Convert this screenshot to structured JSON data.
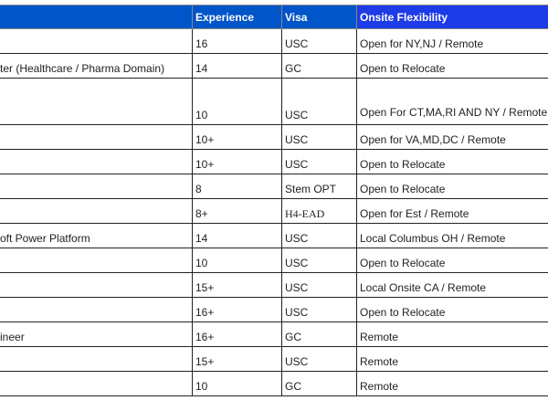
{
  "headers": {
    "role": "",
    "experience": "Experience",
    "visa": "Visa",
    "onsite": "Onsite Flexibility"
  },
  "colors": {
    "header_bg": "#0055c8",
    "onsite_header_bg": "#1d3be6"
  },
  "rows": [
    {
      "role": "",
      "experience": "16",
      "visa": "USC",
      "onsite": "Open for NY,NJ / Remote"
    },
    {
      "role": "ter (Healthcare / Pharma Domain)",
      "experience": "14",
      "visa": "GC",
      "onsite": "Open to Relocate"
    },
    {
      "role": "",
      "experience": "10",
      "visa": "USC",
      "onsite": "Open For CT,MA,RI AND NY / Remote"
    },
    {
      "role": "",
      "experience": "10+",
      "visa": "USC",
      "onsite": "Open for VA,MD,DC / Remote"
    },
    {
      "role": "",
      "experience": "10+",
      "visa": "USC",
      "onsite": "Open to Relocate"
    },
    {
      "role": "",
      "experience": "8",
      "visa": "Stem OPT",
      "onsite": "Open to Relocate"
    },
    {
      "role": "",
      "experience": "8+",
      "visa": "H4-EAD",
      "onsite": "Open for Est / Remote"
    },
    {
      "role": "oft Power Platform",
      "experience": "14",
      "visa": "USC",
      "onsite": "Local Columbus OH / Remote"
    },
    {
      "role": "",
      "experience": "10",
      "visa": "USC",
      "onsite": "Open to Relocate"
    },
    {
      "role": "",
      "experience": "15+",
      "visa": "USC",
      "onsite": "Local Onsite CA / Remote"
    },
    {
      "role": "",
      "experience": "16+",
      "visa": "USC",
      "onsite": "Open to Relocate"
    },
    {
      "role": "ineer",
      "experience": "16+",
      "visa": "GC",
      "onsite": "Remote"
    },
    {
      "role": "",
      "experience": "15+",
      "visa": "USC",
      "onsite": "Remote"
    },
    {
      "role": "",
      "experience": "10",
      "visa": "GC",
      "onsite": "Remote"
    }
  ]
}
